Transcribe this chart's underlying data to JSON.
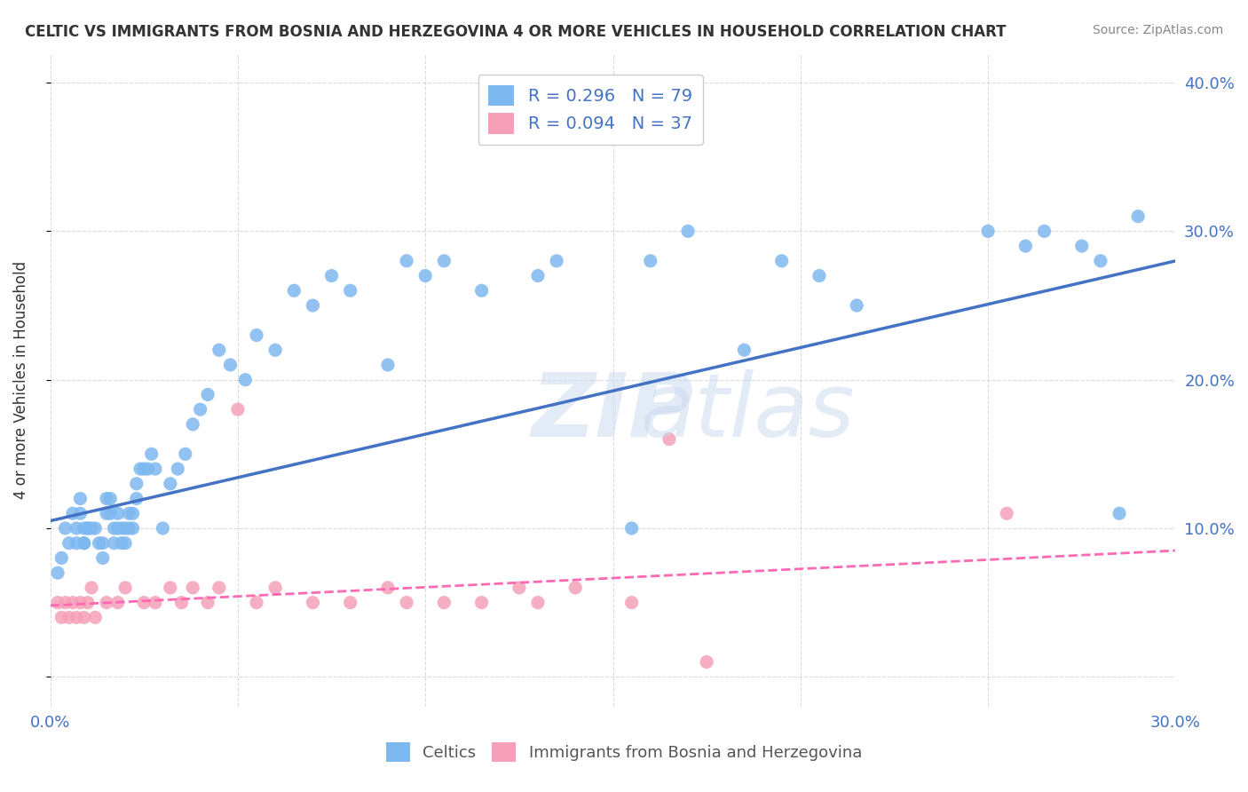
{
  "title": "CELTIC VS IMMIGRANTS FROM BOSNIA AND HERZEGOVINA 4 OR MORE VEHICLES IN HOUSEHOLD CORRELATION CHART",
  "source": "Source: ZipAtlas.com",
  "xlabel_bottom": "",
  "ylabel": "4 or more Vehicles in Household",
  "xlim": [
    0.0,
    0.3
  ],
  "ylim": [
    -0.02,
    0.42
  ],
  "xticks": [
    0.0,
    0.05,
    0.1,
    0.15,
    0.2,
    0.25,
    0.3
  ],
  "yticks": [
    0.0,
    0.1,
    0.2,
    0.3,
    0.4
  ],
  "ytick_labels": [
    "0.0%",
    "10.0%",
    "20.0%",
    "30.0%",
    "40.0%"
  ],
  "xtick_labels": [
    "0.0%",
    "",
    "",
    "",
    "",
    "",
    "30.0%"
  ],
  "right_ytick_labels": [
    "40.0%",
    "30.0%",
    "20.0%",
    "10.0%"
  ],
  "right_ytick_positions": [
    0.4,
    0.3,
    0.2,
    0.1
  ],
  "blue_color": "#7EB8F0",
  "pink_color": "#F5A0B8",
  "blue_line_color": "#4472C4",
  "pink_line_color": "#FF69B4",
  "text_color": "#4472C4",
  "legend_blue_label": "R = 0.296   N = 79",
  "legend_pink_label": "R = 0.094   N = 37",
  "celtics_label": "Celtics",
  "immigrants_label": "Immigrants from Bosnia and Herzegovina",
  "watermark": "ZIPat las",
  "blue_scatter_x": [
    0.008,
    0.009,
    0.009,
    0.01,
    0.011,
    0.012,
    0.013,
    0.014,
    0.014,
    0.015,
    0.015,
    0.016,
    0.016,
    0.017,
    0.017,
    0.018,
    0.018,
    0.019,
    0.019,
    0.02,
    0.02,
    0.021,
    0.021,
    0.022,
    0.022,
    0.023,
    0.023,
    0.024,
    0.025,
    0.026,
    0.027,
    0.028,
    0.03,
    0.032,
    0.034,
    0.036,
    0.038,
    0.04,
    0.042,
    0.045,
    0.048,
    0.052,
    0.055,
    0.06,
    0.065,
    0.07,
    0.075,
    0.08,
    0.09,
    0.095,
    0.1,
    0.105,
    0.115,
    0.13,
    0.135,
    0.155,
    0.16,
    0.17,
    0.185,
    0.195,
    0.205,
    0.215,
    0.25,
    0.26,
    0.265,
    0.275,
    0.28,
    0.29,
    0.002,
    0.003,
    0.004,
    0.005,
    0.006,
    0.007,
    0.007,
    0.008,
    0.009,
    0.01,
    0.285
  ],
  "blue_scatter_y": [
    0.12,
    0.1,
    0.09,
    0.1,
    0.1,
    0.1,
    0.09,
    0.08,
    0.09,
    0.11,
    0.12,
    0.11,
    0.12,
    0.09,
    0.1,
    0.1,
    0.11,
    0.09,
    0.1,
    0.1,
    0.09,
    0.1,
    0.11,
    0.1,
    0.11,
    0.12,
    0.13,
    0.14,
    0.14,
    0.14,
    0.15,
    0.14,
    0.1,
    0.13,
    0.14,
    0.15,
    0.17,
    0.18,
    0.19,
    0.22,
    0.21,
    0.2,
    0.23,
    0.22,
    0.26,
    0.25,
    0.27,
    0.26,
    0.21,
    0.28,
    0.27,
    0.28,
    0.26,
    0.27,
    0.28,
    0.1,
    0.28,
    0.3,
    0.22,
    0.28,
    0.27,
    0.25,
    0.3,
    0.29,
    0.3,
    0.29,
    0.28,
    0.31,
    0.07,
    0.08,
    0.1,
    0.09,
    0.11,
    0.09,
    0.1,
    0.11,
    0.09,
    0.1,
    0.11
  ],
  "pink_scatter_x": [
    0.002,
    0.003,
    0.004,
    0.005,
    0.006,
    0.007,
    0.008,
    0.009,
    0.01,
    0.011,
    0.012,
    0.015,
    0.018,
    0.02,
    0.025,
    0.028,
    0.032,
    0.035,
    0.038,
    0.042,
    0.045,
    0.05,
    0.055,
    0.06,
    0.07,
    0.08,
    0.09,
    0.095,
    0.105,
    0.115,
    0.125,
    0.13,
    0.14,
    0.155,
    0.165,
    0.175,
    0.255
  ],
  "pink_scatter_y": [
    0.05,
    0.04,
    0.05,
    0.04,
    0.05,
    0.04,
    0.05,
    0.04,
    0.05,
    0.06,
    0.04,
    0.05,
    0.05,
    0.06,
    0.05,
    0.05,
    0.06,
    0.05,
    0.06,
    0.05,
    0.06,
    0.18,
    0.05,
    0.06,
    0.05,
    0.05,
    0.06,
    0.05,
    0.05,
    0.05,
    0.06,
    0.05,
    0.06,
    0.05,
    0.16,
    0.01,
    0.11
  ],
  "blue_line_x": [
    0.0,
    0.3
  ],
  "blue_line_y": [
    0.105,
    0.28
  ],
  "pink_line_x": [
    0.0,
    0.3
  ],
  "pink_line_y": [
    0.048,
    0.085
  ],
  "background_color": "#FFFFFF",
  "grid_color": "#CCCCCC"
}
